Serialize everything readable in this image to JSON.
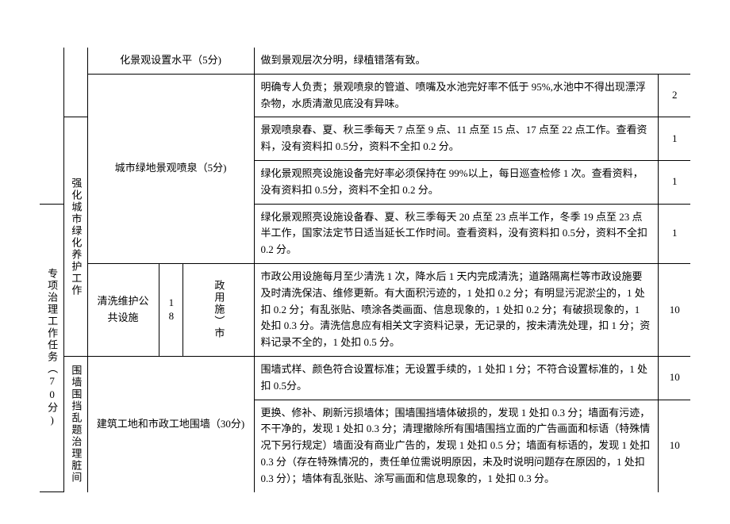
{
  "table": {
    "col_a": "专项治理工作任务（70分)",
    "group1": {
      "label": "强化城市绿化养护工作",
      "cat_vert": "18",
      "item1": {
        "label": "化景观设置水平（5分)",
        "desc": "做到景观层次分明，绿植错落有致。"
      },
      "item2": {
        "label": "城市绿地景观喷泉（5分)",
        "r1": {
          "desc": "明确专人负责；景观喷泉的管道、喷嘴及水池完好率不低于 95%,水池中不得出现漂浮杂物，水质清澈见底没有异味。",
          "score": "2"
        },
        "r2": {
          "desc": "景观喷泉春、夏、秋三季每天 7 点至 9 点、11 点至 15 点、17 点至 22 点工作。查看资料，没有资料扣 0.5分，资料不全扣 0.2 分。",
          "score": "1"
        },
        "r3": {
          "desc": "绿化景观照亮设施设备完好率必须保持在 99%以上，每日巡查检修 1 次。查看资料，没有资料扣 0.5分，资料不全扣 0.2 分。",
          "score": "1"
        },
        "r4": {
          "desc": "绿化景观照亮设施设备春、夏、秋三季每天 20 点至 23 点半工作，冬季 19 点至 23 点半工作，国家法定节日适当延长工作时间。查看资料，没有资料扣 0.5分，资料不全扣 0.2 分。",
          "score": "1"
        }
      },
      "item3": {
        "label_a": "清洗维护公共设施",
        "label_b": "政用施）市",
        "desc": "市政公用设施每月至少清洗 1 次，降水后 1 天内完成清洗；道路隔离栏等市政设施要及时清洗保洁、维修更新。有大面积污迹的，1 处扣 0.2 分；有明显污泥淤尘的，1 处扣 0.2 分；有乱张贴、喷涂各类画面、信息现象的，1 处扣 0.2 分；有破损现象的，1 处扣 0.3 分。清洗信息应有相关文字资料记录，无记录的，按未清洗处理，扣 1 分；资料记录不全的，1 处扣 0.5 分。",
        "score": "10"
      }
    },
    "group2": {
      "label": "围墙围挡乱题治理脏间",
      "item": {
        "label": "建筑工地和市政工地围墙（30分)",
        "r1": {
          "desc": "围墙式样、颜色符合设置标准；无设置手续的，1 处扣 1 分；不符合设置标准的，1 处扣 0.5分。",
          "score": "10"
        },
        "r2": {
          "desc": "更换、修补、刷新污损墙体；围墙围挡墙体破损的，发现 1 处扣 0.3 分；墙面有污迹，不干净的，发现 1 处扣 0.3 分；清理撤除所有围墙围挡立面的广告画面和标语（特殊情况下另行规定）墙面没有商业广告的，发现 1 处扣 0.5 分；墙面有标语的，发现 1 处扣 0.3 分（存在特殊情况的，责任单位需说明原因，未及时说明问题存在原因的，1 处扣 0.3 分）；墙体有乱张贴、涂写画面和信息现象的，1 处扣 0.3 分。",
          "score": "10"
        }
      }
    }
  }
}
